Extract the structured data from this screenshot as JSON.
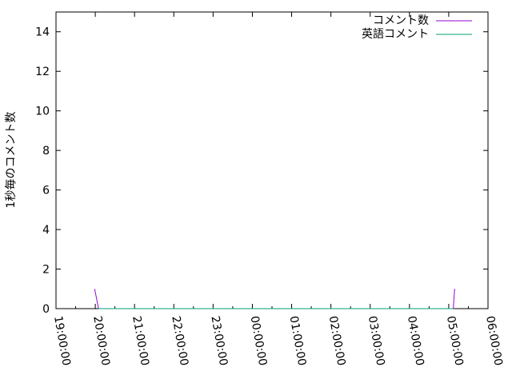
{
  "chart_data": {
    "type": "line",
    "title": "",
    "xlabel": "",
    "ylabel": "1秒毎のコメント数",
    "xlim": [
      "19:00:00",
      "30:00:00"
    ],
    "ylim": [
      0,
      15
    ],
    "x_ticks": [
      "19:00:00",
      "20:00:00",
      "21:00:00",
      "22:00:00",
      "23:00:00",
      "00:00:00",
      "01:00:00",
      "02:00:00",
      "03:00:00",
      "04:00:00",
      "05:00:00",
      "06:00:00"
    ],
    "y_ticks": [
      "0",
      "2",
      "4",
      "6",
      "8",
      "10",
      "12",
      "14"
    ],
    "grid": false,
    "legend": "top-right",
    "series": [
      {
        "name": "コメント数",
        "color": "#9400d3",
        "points": [
          [
            "19:59:00",
            1
          ],
          [
            "20:05:00",
            0
          ],
          [
            "05:07:00",
            0
          ],
          [
            "05:09:00",
            1
          ]
        ]
      },
      {
        "name": "英語コメント",
        "color": "#009e73",
        "points": [
          [
            "20:05:00",
            0
          ],
          [
            "05:07:00",
            0
          ]
        ]
      }
    ]
  }
}
